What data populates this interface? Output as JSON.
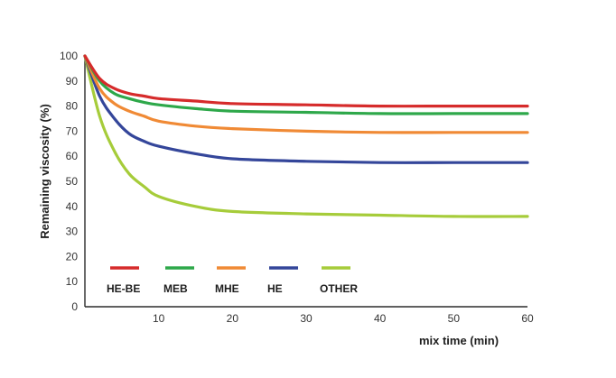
{
  "chart_data": {
    "type": "line",
    "xlabel": "mix time (min)",
    "ylabel": "Remaining viscosity (%)",
    "xlim": [
      0,
      60
    ],
    "ylim": [
      0,
      100
    ],
    "x_ticks": [
      10,
      20,
      30,
      40,
      50,
      60
    ],
    "y_ticks": [
      0,
      10,
      20,
      30,
      40,
      50,
      60,
      70,
      80,
      90,
      100
    ],
    "grid": false,
    "legend_placement": "bottom-left",
    "series": [
      {
        "name": "HE-BE",
        "color": "#d62b2b",
        "x": [
          0,
          2,
          4,
          6,
          8,
          10,
          15,
          20,
          30,
          40,
          50,
          60
        ],
        "y": [
          100,
          91,
          87,
          85,
          84,
          83,
          82,
          81,
          80.5,
          80,
          80,
          80
        ]
      },
      {
        "name": "MEB",
        "color": "#2ea84a",
        "x": [
          0,
          2,
          4,
          6,
          8,
          10,
          15,
          20,
          30,
          40,
          50,
          60
        ],
        "y": [
          100,
          90,
          85,
          83,
          81.5,
          80.5,
          79,
          78,
          77.5,
          77,
          77,
          77
        ]
      },
      {
        "name": "MHE",
        "color": "#f08a35",
        "x": [
          0,
          2,
          4,
          6,
          8,
          10,
          15,
          20,
          30,
          40,
          50,
          60
        ],
        "y": [
          100,
          87,
          81,
          78,
          76,
          74,
          72,
          71,
          70,
          69.5,
          69.5,
          69.5
        ]
      },
      {
        "name": "HE",
        "color": "#34469a",
        "x": [
          0,
          2,
          4,
          6,
          8,
          10,
          15,
          20,
          30,
          40,
          50,
          60
        ],
        "y": [
          100,
          84,
          75,
          69,
          66,
          64,
          61,
          59,
          58,
          57.5,
          57.5,
          57.5
        ]
      },
      {
        "name": "OTHER",
        "color": "#a6cc3a",
        "x": [
          0,
          2,
          4,
          6,
          8,
          10,
          15,
          20,
          30,
          40,
          50,
          60
        ],
        "y": [
          100,
          76,
          62,
          53,
          48,
          44,
          40,
          38,
          37,
          36.5,
          36,
          36
        ]
      }
    ]
  }
}
